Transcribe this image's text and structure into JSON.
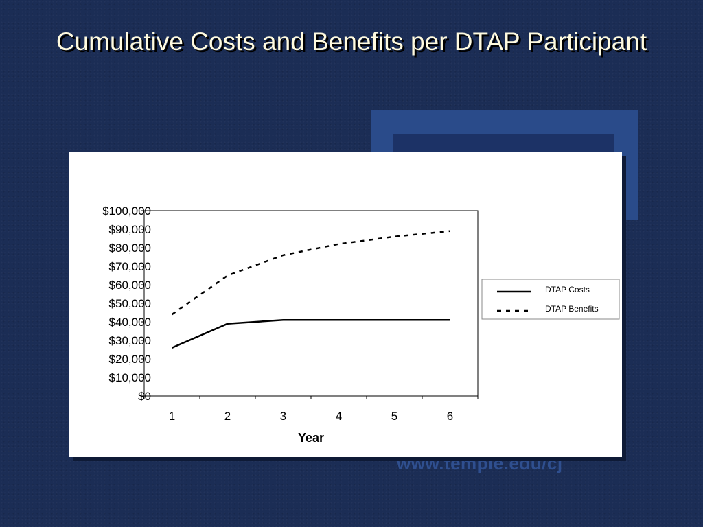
{
  "slide": {
    "title": "Cumulative Costs and Benefits per DTAP Participant",
    "watermark": "www.temple.edu/cj"
  },
  "chart_data": {
    "type": "line",
    "title": "",
    "xlabel": "Year",
    "ylabel": "",
    "categories": [
      "1",
      "2",
      "3",
      "4",
      "5",
      "6"
    ],
    "ylim": [
      0,
      100000
    ],
    "y_ticks": [
      "$0",
      "$10,000",
      "$20,000",
      "$30,000",
      "$40,000",
      "$50,000",
      "$60,000",
      "$70,000",
      "$80,000",
      "$90,000",
      "$100,000"
    ],
    "grid": false,
    "legend_position": "right",
    "series": [
      {
        "name": "DTAP Costs",
        "style": "solid",
        "color": "#000000",
        "values": [
          26000,
          39000,
          41000,
          41000,
          41000,
          41000
        ]
      },
      {
        "name": "DTAP Benefits",
        "style": "dashed",
        "color": "#000000",
        "values": [
          44000,
          65000,
          76000,
          82000,
          86000,
          89000
        ]
      }
    ]
  }
}
